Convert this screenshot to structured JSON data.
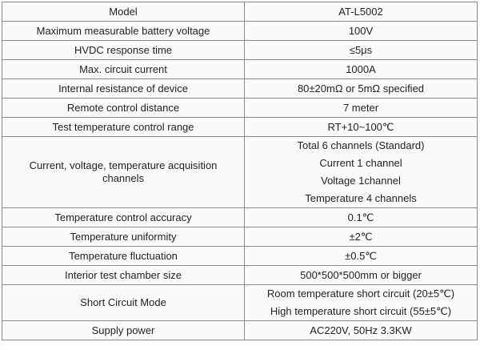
{
  "rows": [
    {
      "label": "Model",
      "value": [
        "AT-L5002"
      ]
    },
    {
      "label": "Maximum measurable battery voltage",
      "value": [
        "100V"
      ]
    },
    {
      "label": "HVDC response time",
      "value": [
        "≤5μs"
      ]
    },
    {
      "label": "Max. circuit current",
      "value": [
        "1000A"
      ]
    },
    {
      "label": "Internal resistance of device",
      "value": [
        "80±20mΩ or 5mΩ specified"
      ]
    },
    {
      "label": "Remote control distance",
      "value": [
        "7 meter"
      ]
    },
    {
      "label": "Test temperature control range",
      "value": [
        "RT+10~100℃"
      ]
    },
    {
      "label": "Current, voltage, temperature acquisition channels",
      "value": [
        "Total 6 channels (Standard)",
        "Current 1 channel",
        "Voltage 1channel",
        "Temperature 4 channels"
      ]
    },
    {
      "label": "Temperature control accuracy",
      "value": [
        "0.1℃"
      ]
    },
    {
      "label": "Temperature uniformity",
      "value": [
        "±2℃"
      ]
    },
    {
      "label": "Temperature fluctuation",
      "value": [
        "±0.5℃"
      ]
    },
    {
      "label": "Interior test chamber size",
      "value": [
        "500*500*500mm or bigger"
      ]
    },
    {
      "label": "Short Circuit Mode",
      "value": [
        "Room temperature short circuit (20±5℃)",
        "High temperature short circuit (55±5℃)"
      ]
    },
    {
      "label": "Supply power",
      "value": [
        "AC220V, 50Hz 3.3KW"
      ]
    }
  ]
}
